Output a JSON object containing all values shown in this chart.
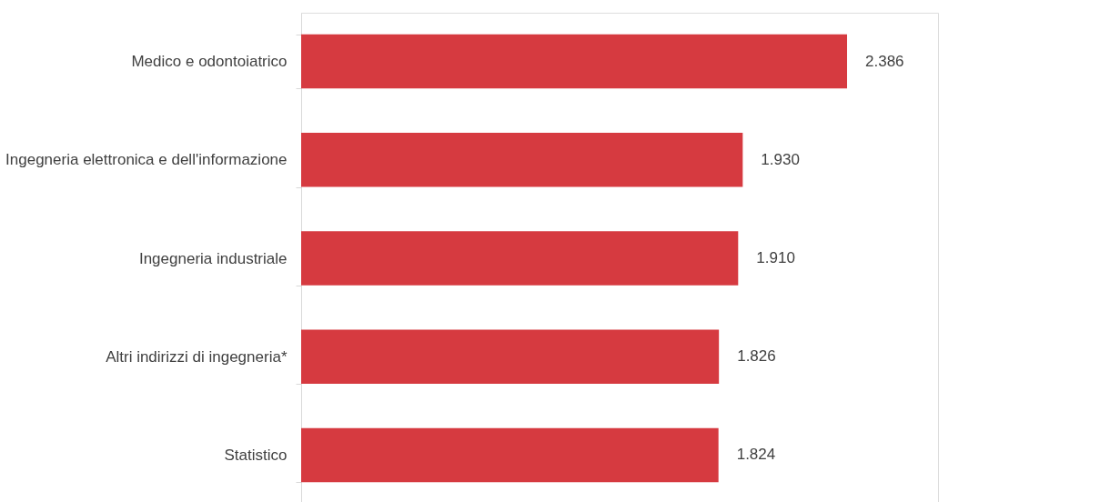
{
  "chart_data": {
    "type": "bar",
    "orientation": "horizontal",
    "categories": [
      "Medico e odontoiatrico",
      "Ingegneria elettronica e dell'informazione",
      "Ingegneria industriale",
      "Altri indirizzi di ingegneria*",
      "Statistico"
    ],
    "values": [
      2386,
      1930,
      1910,
      1826,
      1824
    ],
    "value_labels": [
      "2.386",
      "1.930",
      "1.910",
      "1.826",
      "1.824"
    ],
    "color": "#d63a40",
    "grid": false
  }
}
